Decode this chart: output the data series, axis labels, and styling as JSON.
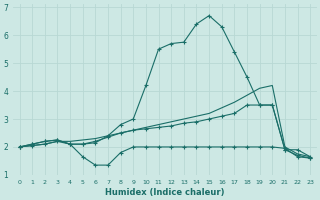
{
  "xlabel": "Humidex (Indice chaleur)",
  "background_color": "#cde8e4",
  "grid_color": "#b8d8d4",
  "line_color": "#1a6e68",
  "xlim": [
    -0.5,
    23.5
  ],
  "ylim": [
    1.0,
    7.1
  ],
  "xtick_labels": [
    "0",
    "1",
    "2",
    "3",
    "4",
    "5",
    "6",
    "7",
    "8",
    "9",
    "10",
    "11",
    "12",
    "13",
    "14",
    "15",
    "16",
    "17",
    "18",
    "19",
    "20",
    "21",
    "22",
    "23"
  ],
  "xtick_vals": [
    0,
    1,
    2,
    3,
    4,
    5,
    6,
    7,
    8,
    9,
    10,
    11,
    12,
    13,
    14,
    15,
    16,
    17,
    18,
    19,
    20,
    21,
    22,
    23
  ],
  "ytick_vals": [
    1,
    2,
    3,
    4,
    5,
    6,
    7
  ],
  "series": [
    {
      "x": [
        0,
        1,
        2,
        3,
        4,
        5,
        6,
        7,
        8,
        9,
        10,
        11,
        12,
        13,
        14,
        15,
        16,
        17,
        18,
        19,
        20,
        21,
        22,
        23
      ],
      "y": [
        2.0,
        2.1,
        2.2,
        2.25,
        2.1,
        1.65,
        1.35,
        1.35,
        1.8,
        2.0,
        2.0,
        2.0,
        2.0,
        2.0,
        2.0,
        2.0,
        2.0,
        2.0,
        2.0,
        2.0,
        2.0,
        1.95,
        1.65,
        1.6
      ],
      "marker": true,
      "lw": 0.8
    },
    {
      "x": [
        0,
        1,
        2,
        3,
        4,
        5,
        6,
        7,
        8,
        9,
        10,
        11,
        12,
        13,
        14,
        15,
        16,
        17,
        18,
        19,
        20,
        21,
        22,
        23
      ],
      "y": [
        2.0,
        2.05,
        2.1,
        2.2,
        2.2,
        2.25,
        2.3,
        2.4,
        2.5,
        2.6,
        2.7,
        2.8,
        2.9,
        3.0,
        3.1,
        3.2,
        3.4,
        3.6,
        3.85,
        4.1,
        4.2,
        2.0,
        1.75,
        1.65
      ],
      "marker": false,
      "lw": 0.8
    },
    {
      "x": [
        0,
        1,
        2,
        3,
        4,
        5,
        6,
        7,
        8,
        9,
        10,
        11,
        12,
        13,
        14,
        15,
        16,
        17,
        18,
        19,
        20,
        21,
        22,
        23
      ],
      "y": [
        2.0,
        2.05,
        2.1,
        2.2,
        2.1,
        2.1,
        2.2,
        2.35,
        2.5,
        2.6,
        2.65,
        2.7,
        2.75,
        2.85,
        2.9,
        3.0,
        3.1,
        3.2,
        3.5,
        3.5,
        3.5,
        1.9,
        1.7,
        1.6
      ],
      "marker": true,
      "lw": 0.8
    },
    {
      "x": [
        0,
        1,
        2,
        3,
        4,
        5,
        6,
        7,
        8,
        9,
        10,
        11,
        12,
        13,
        14,
        15,
        16,
        17,
        18,
        19,
        20,
        21,
        22,
        23
      ],
      "y": [
        2.0,
        2.1,
        2.2,
        2.25,
        2.1,
        2.1,
        2.15,
        2.4,
        2.8,
        3.0,
        4.2,
        5.5,
        5.7,
        5.75,
        6.4,
        6.7,
        6.3,
        5.4,
        4.5,
        3.5,
        3.5,
        1.9,
        1.9,
        1.65
      ],
      "marker": true,
      "lw": 0.8
    }
  ]
}
